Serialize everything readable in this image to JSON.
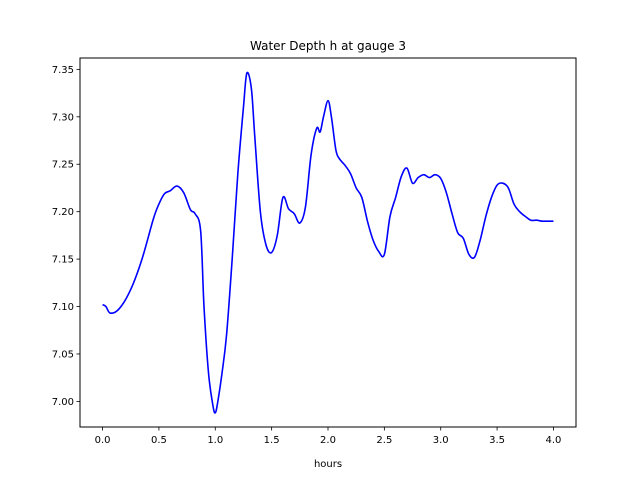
{
  "chart_data": {
    "type": "line",
    "title": "Water Depth h at gauge 3",
    "xlabel": "hours",
    "ylabel": "",
    "xlim": [
      -0.2,
      4.2
    ],
    "ylim": [
      6.973,
      7.362
    ],
    "xticks": [
      0.0,
      0.5,
      1.0,
      1.5,
      2.0,
      2.5,
      3.0,
      3.5,
      4.0
    ],
    "xtick_labels": [
      "0.0",
      "0.5",
      "1.0",
      "1.5",
      "2.0",
      "2.5",
      "3.0",
      "3.5",
      "4.0"
    ],
    "yticks": [
      7.0,
      7.05,
      7.1,
      7.15,
      7.2,
      7.25,
      7.3,
      7.35
    ],
    "ytick_labels": [
      "7.00",
      "7.05",
      "7.10",
      "7.15",
      "7.20",
      "7.25",
      "7.30",
      "7.35"
    ],
    "grid": false,
    "legend": "none",
    "series": [
      {
        "color": "#0000ff",
        "x": [
          0.0,
          0.03,
          0.07,
          0.15,
          0.25,
          0.35,
          0.45,
          0.5,
          0.55,
          0.6,
          0.66,
          0.72,
          0.78,
          0.82,
          0.87,
          0.9,
          0.94,
          0.98,
          1.0,
          1.02,
          1.06,
          1.1,
          1.15,
          1.2,
          1.25,
          1.28,
          1.32,
          1.35,
          1.4,
          1.45,
          1.5,
          1.55,
          1.6,
          1.65,
          1.7,
          1.75,
          1.8,
          1.85,
          1.9,
          1.93,
          1.96,
          2.0,
          2.03,
          2.07,
          2.1,
          2.15,
          2.2,
          2.25,
          2.3,
          2.35,
          2.4,
          2.45,
          2.5,
          2.55,
          2.6,
          2.65,
          2.7,
          2.75,
          2.8,
          2.85,
          2.9,
          2.95,
          3.0,
          3.05,
          3.1,
          3.15,
          3.2,
          3.25,
          3.3,
          3.35,
          3.4,
          3.45,
          3.5,
          3.55,
          3.6,
          3.65,
          3.7,
          3.75,
          3.8,
          3.85,
          3.9,
          3.95,
          4.0
        ],
        "y": [
          7.102,
          7.1,
          7.093,
          7.098,
          7.118,
          7.15,
          7.192,
          7.208,
          7.219,
          7.222,
          7.227,
          7.22,
          7.202,
          7.198,
          7.18,
          7.1,
          7.03,
          6.995,
          6.988,
          6.998,
          7.03,
          7.07,
          7.15,
          7.24,
          7.31,
          7.346,
          7.33,
          7.28,
          7.2,
          7.165,
          7.157,
          7.175,
          7.215,
          7.203,
          7.198,
          7.188,
          7.205,
          7.26,
          7.288,
          7.284,
          7.3,
          7.317,
          7.3,
          7.265,
          7.256,
          7.249,
          7.24,
          7.225,
          7.215,
          7.19,
          7.17,
          7.158,
          7.155,
          7.195,
          7.215,
          7.237,
          7.246,
          7.23,
          7.236,
          7.239,
          7.236,
          7.239,
          7.235,
          7.22,
          7.198,
          7.178,
          7.172,
          7.155,
          7.152,
          7.17,
          7.195,
          7.215,
          7.228,
          7.23,
          7.225,
          7.208,
          7.2,
          7.195,
          7.191,
          7.191,
          7.19,
          7.19,
          7.19
        ]
      }
    ]
  }
}
